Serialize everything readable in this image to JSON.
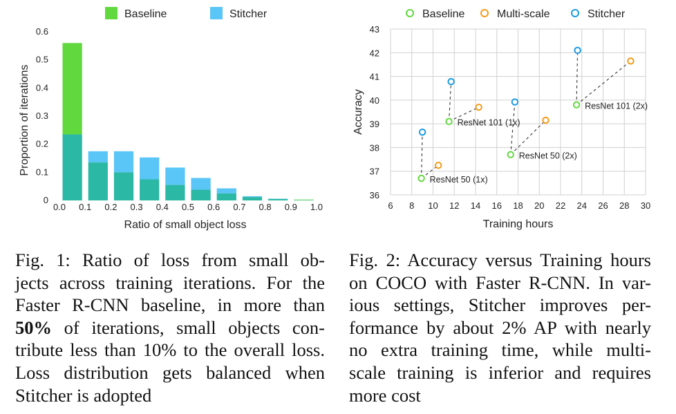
{
  "chart_data": [
    {
      "type": "bar",
      "stacked": "overlay",
      "xlabel": "Ratio of small object loss",
      "ylabel": "Proportion of iterations",
      "ylim": [
        0,
        0.6
      ],
      "xlim": [
        0,
        1.0
      ],
      "x_ticks": [
        "0.0",
        "0.1",
        "0.2",
        "0.3",
        "0.4",
        "0.5",
        "0.6",
        "0.7",
        "0.8",
        "0.9",
        "1.0"
      ],
      "y_ticks": [
        "0",
        "0.1",
        "0.2",
        "0.3",
        "0.4",
        "0.5",
        "0.6"
      ],
      "legend_position": "top",
      "bin_width": 0.1,
      "bins": [
        0.0,
        0.1,
        0.2,
        0.3,
        0.4,
        0.5,
        0.6,
        0.7,
        0.8,
        0.9
      ],
      "series": [
        {
          "name": "Baseline",
          "color": "#62d83f",
          "values": [
            0.56,
            0.135,
            0.1,
            0.075,
            0.055,
            0.038,
            0.025,
            0.012,
            0.005,
            0.003
          ]
        },
        {
          "name": "Stitcher",
          "color": "#5ac5f7",
          "values": [
            0.235,
            0.175,
            0.175,
            0.153,
            0.117,
            0.08,
            0.043,
            0.015,
            0.006,
            0.001
          ]
        }
      ],
      "overlap_color": "#2bb8a4"
    },
    {
      "type": "scatter",
      "xlabel": "Training hours",
      "ylabel": "Accuracy",
      "xlim": [
        6,
        30
      ],
      "ylim": [
        36,
        43
      ],
      "x_ticks": [
        "6",
        "8",
        "10",
        "12",
        "14",
        "16",
        "18",
        "20",
        "22",
        "24",
        "26",
        "28",
        "30"
      ],
      "y_ticks": [
        "36",
        "37",
        "38",
        "39",
        "40",
        "41",
        "42",
        "43"
      ],
      "grid": true,
      "legend_position": "top",
      "series": [
        {
          "name": "Baseline",
          "color": "#62d83f",
          "points": [
            [
              8.9,
              36.7
            ],
            [
              11.5,
              39.1
            ],
            [
              17.3,
              37.7
            ],
            [
              23.5,
              39.8
            ]
          ]
        },
        {
          "name": "Multi-scale",
          "color": "#f49a1a",
          "points": [
            [
              10.5,
              37.25
            ],
            [
              14.3,
              39.7
            ],
            [
              20.6,
              39.15
            ],
            [
              28.6,
              41.65
            ]
          ]
        },
        {
          "name": "Stitcher",
          "color": "#1a9ae0",
          "points": [
            [
              9.0,
              38.65
            ],
            [
              11.7,
              40.78
            ],
            [
              17.7,
              39.92
            ],
            [
              23.6,
              42.1
            ]
          ]
        }
      ],
      "annotations": [
        {
          "text": "ResNet 50 (1x)",
          "x": 8.9,
          "y": 36.7
        },
        {
          "text": "ResNet 101 (1x)",
          "x": 11.5,
          "y": 39.1
        },
        {
          "text": "ResNet 50 (2x)",
          "x": 17.3,
          "y": 37.7
        },
        {
          "text": "ResNet 101 (2x)",
          "x": 23.5,
          "y": 39.8
        }
      ]
    }
  ],
  "captions": {
    "fig1": {
      "lines": [
        "Fig. 1: Ratio of loss from small ob-",
        "jects across training iterations. For the",
        "Faster R-CNN baseline, in more than",
        "|50%| of iterations, small objects con-",
        "tribute less than 10% to the overall loss.",
        "Loss distribution gets balanced when",
        "Stitcher is adopted"
      ]
    },
    "fig2": {
      "lines": [
        "Fig. 2: Accuracy versus Training hours",
        "on COCO with Faster R-CNN. In var-",
        "ious settings, Stitcher improves per-",
        "formance by about 2% AP with nearly",
        "no extra training time, while multi-",
        "scale training is inferior and requires",
        "more cost"
      ]
    }
  }
}
